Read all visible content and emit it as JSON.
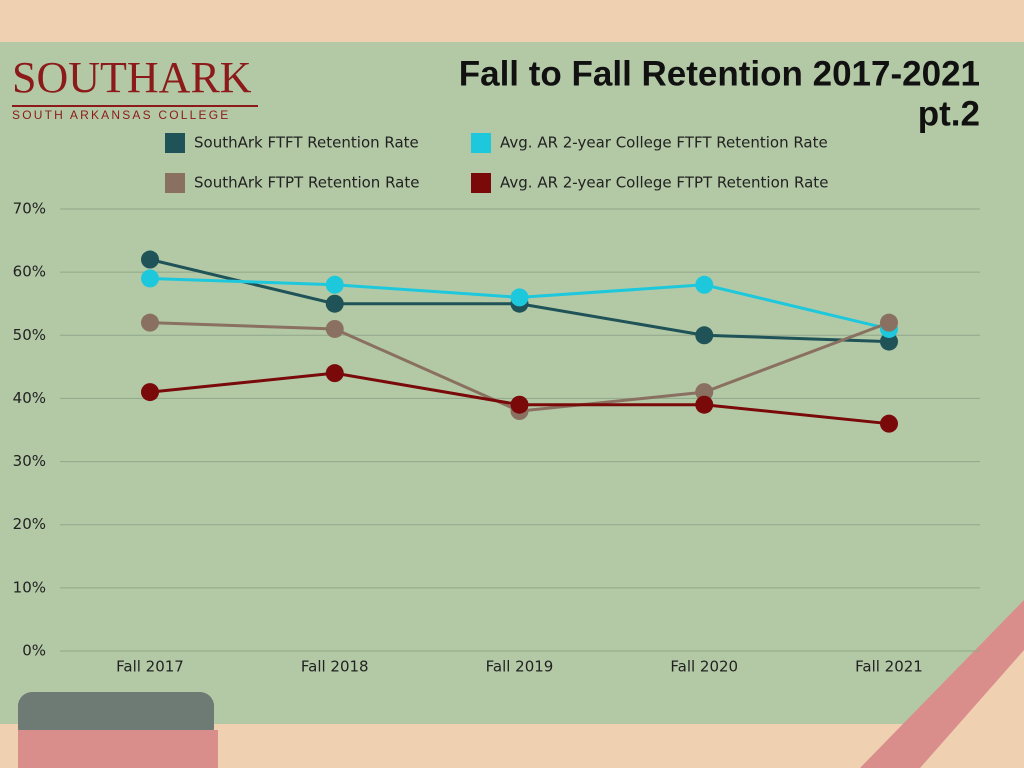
{
  "logo": {
    "name": "SOUTHARK",
    "tagline": "SOUTH ARKANSAS COLLEGE"
  },
  "chart_data": {
    "type": "line",
    "title": [
      "Fall to Fall Retention 2017-2021",
      "pt.2"
    ],
    "categories": [
      "Fall 2017",
      "Fall 2018",
      "Fall 2019",
      "Fall 2020",
      "Fall 2021"
    ],
    "series": [
      {
        "name": "SouthArk FTFT Retention Rate",
        "color": "#1f5358",
        "values": [
          62,
          55,
          55,
          50,
          49
        ]
      },
      {
        "name": "Avg. AR 2-year College FTFT Retention Rate",
        "color": "#1ec8dc",
        "values": [
          59,
          58,
          56,
          58,
          51
        ]
      },
      {
        "name": "SouthArk FTPT Retention Rate",
        "color": "#8a7060",
        "values": [
          52,
          51,
          38,
          41,
          52
        ]
      },
      {
        "name": "Avg. AR 2-year College FTPT Retention Rate",
        "color": "#7a0a0a",
        "values": [
          41,
          44,
          39,
          39,
          36
        ]
      }
    ],
    "ylim": [
      0,
      70
    ],
    "yticks": [
      {
        "value": 0,
        "label": "0%"
      },
      {
        "value": 10,
        "label": "10%"
      },
      {
        "value": 20,
        "label": "20%"
      },
      {
        "value": 30,
        "label": "30%"
      },
      {
        "value": 40,
        "label": "40%"
      },
      {
        "value": 50,
        "label": "50%"
      },
      {
        "value": 60,
        "label": "60%"
      },
      {
        "value": 70,
        "label": "70%"
      }
    ],
    "grid": true
  }
}
